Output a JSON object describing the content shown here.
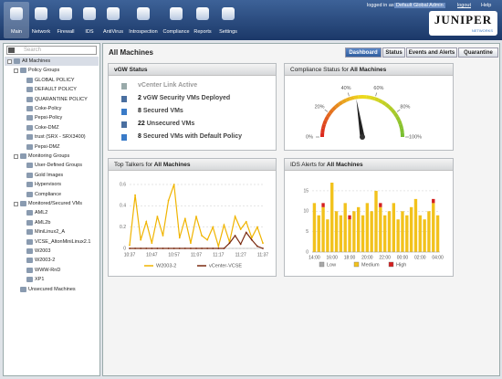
{
  "header": {
    "nav": [
      "Main",
      "Network",
      "Firewall",
      "IDS",
      "AntiVirus",
      "Introspection",
      "Compliance",
      "Reports",
      "Settings"
    ],
    "active_nav": "Main",
    "logged_in_as": "logged in as",
    "user": "Default Global Admin",
    "logout": "logout",
    "help": "Help",
    "logo": "JUNIPER",
    "logo_sub": "NETWORKS"
  },
  "sidebar": {
    "search_placeholder": "Search",
    "tree": {
      "label": "All Machines",
      "children": [
        {
          "label": "Policy Groups",
          "children": [
            {
              "label": "GLOBAL POLICY"
            },
            {
              "label": "DEFAULT POLICY"
            },
            {
              "label": "QUARANTINE POLICY"
            },
            {
              "label": "Coke-Policy"
            },
            {
              "label": "Pepsi-Policy"
            },
            {
              "label": "Coke-DMZ"
            },
            {
              "label": "trust (SRX - SRX3400)"
            },
            {
              "label": "Pepsi-DMZ"
            }
          ]
        },
        {
          "label": "Monitoring Groups",
          "children": [
            {
              "label": "User-Defined Groups"
            },
            {
              "label": "Gold Images"
            },
            {
              "label": "Hypervisors"
            },
            {
              "label": "Compliance"
            }
          ]
        },
        {
          "label": "Monitored/Secured VMs",
          "children": [
            {
              "label": "AML2"
            },
            {
              "label": "AML2b"
            },
            {
              "label": "MiniLinux2_A"
            },
            {
              "label": "VCSE_AltonMiniLinux2.1"
            },
            {
              "label": "W2003"
            },
            {
              "label": "W2003-2"
            },
            {
              "label": "WWW-RnD"
            },
            {
              "label": "XP1"
            }
          ]
        },
        {
          "label": "Unsecured Machines"
        }
      ]
    }
  },
  "main": {
    "title": "All Machines",
    "tabs": [
      "Dashboard",
      "Status",
      "Events and Alerts",
      "Quarantine"
    ],
    "active_tab": "Dashboard"
  },
  "vgw_status": {
    "title": "vGW Status",
    "items": [
      {
        "text": "vCenter Link Active"
      },
      {
        "count": 2,
        "text": "vGW Security VMs Deployed"
      },
      {
        "count": 8,
        "text": "Secured VMs"
      },
      {
        "count": 22,
        "text": "Unsecured VMs"
      },
      {
        "count": 8,
        "text": "Secured VMs with Default Policy"
      }
    ]
  },
  "chart_data": [
    {
      "type": "gauge",
      "title": "Compliance Status for",
      "scope": "All Machines",
      "value": 45,
      "range": [
        0,
        100
      ],
      "ticks": [
        {
          "value": 0,
          "label": "0%"
        },
        {
          "value": 20,
          "label": "20%"
        },
        {
          "value": 40,
          "label": "40%"
        },
        {
          "value": 60,
          "label": "60%"
        },
        {
          "value": 80,
          "label": "80%"
        },
        {
          "value": 100,
          "label": "100%"
        }
      ]
    },
    {
      "type": "line",
      "title": "Top Talkers for",
      "scope": "All Machines",
      "categories": [
        "10:37",
        null,
        null,
        null,
        "10:47",
        null,
        null,
        null,
        "10:57",
        null,
        null,
        null,
        "11:07",
        null,
        null,
        null,
        "11:17",
        null,
        null,
        null,
        "11:27",
        null,
        null,
        null,
        "11:37"
      ],
      "series": [
        {
          "name": "W2003-2",
          "color": "#f0b400",
          "values": [
            0.03,
            0.5,
            0.08,
            0.25,
            0.05,
            0.3,
            0.12,
            0.45,
            0.6,
            0.1,
            0.28,
            0.05,
            0.3,
            0.12,
            0.08,
            0.2,
            0.02,
            0.22,
            0.06,
            0.3,
            0.18,
            0.25,
            0.1,
            0.2,
            0.05
          ]
        },
        {
          "name": "vCenter-VCSE",
          "color": "#7a2a10",
          "values": [
            0,
            0,
            0,
            0,
            0,
            0,
            0,
            0,
            0,
            0,
            0,
            0,
            0,
            0,
            0,
            0,
            0,
            0,
            0.05,
            0.12,
            0.04,
            0.15,
            0.08,
            0.02,
            0
          ]
        }
      ],
      "ylim": [
        0,
        0.6
      ],
      "yticks": [
        0,
        0.2,
        0.4,
        0.6
      ],
      "grid": true
    },
    {
      "type": "bar",
      "stacked": true,
      "title": "IDS Alerts for",
      "scope": "All Machines",
      "categories": [
        "14:00",
        null,
        null,
        null,
        "16:00",
        null,
        null,
        null,
        "18:00",
        null,
        null,
        null,
        "20:00",
        null,
        null,
        null,
        "22:00",
        null,
        null,
        null,
        "00:00",
        null,
        null,
        null,
        "02:00",
        null,
        null,
        null,
        "04:00"
      ],
      "series": [
        {
          "name": "Low",
          "color": "#a8a8a8",
          "values": [
            0,
            0,
            0,
            0,
            0,
            0,
            0,
            0,
            0,
            0,
            0,
            0,
            0,
            0,
            0,
            0,
            0,
            0,
            0,
            0,
            0,
            0,
            0,
            0,
            0,
            0,
            0,
            0,
            0
          ]
        },
        {
          "name": "Medium",
          "color": "#f2c21c",
          "values": [
            12,
            9,
            11,
            8,
            17,
            10,
            9,
            12,
            8,
            10,
            11,
            9,
            12,
            10,
            15,
            11,
            9,
            10,
            12,
            8,
            10,
            9,
            11,
            13,
            9,
            8,
            10,
            12,
            9
          ]
        },
        {
          "name": "High",
          "color": "#d42020",
          "values": [
            0,
            0,
            1,
            0,
            0,
            0,
            0,
            0,
            1,
            0,
            0,
            0,
            0,
            0,
            0,
            1,
            0,
            0,
            0,
            0,
            0,
            0,
            0,
            0,
            0,
            0,
            0,
            1,
            0
          ]
        }
      ],
      "ylim": [
        0,
        17
      ],
      "yticks": [
        0,
        5,
        10,
        15
      ],
      "grid": true
    }
  ]
}
